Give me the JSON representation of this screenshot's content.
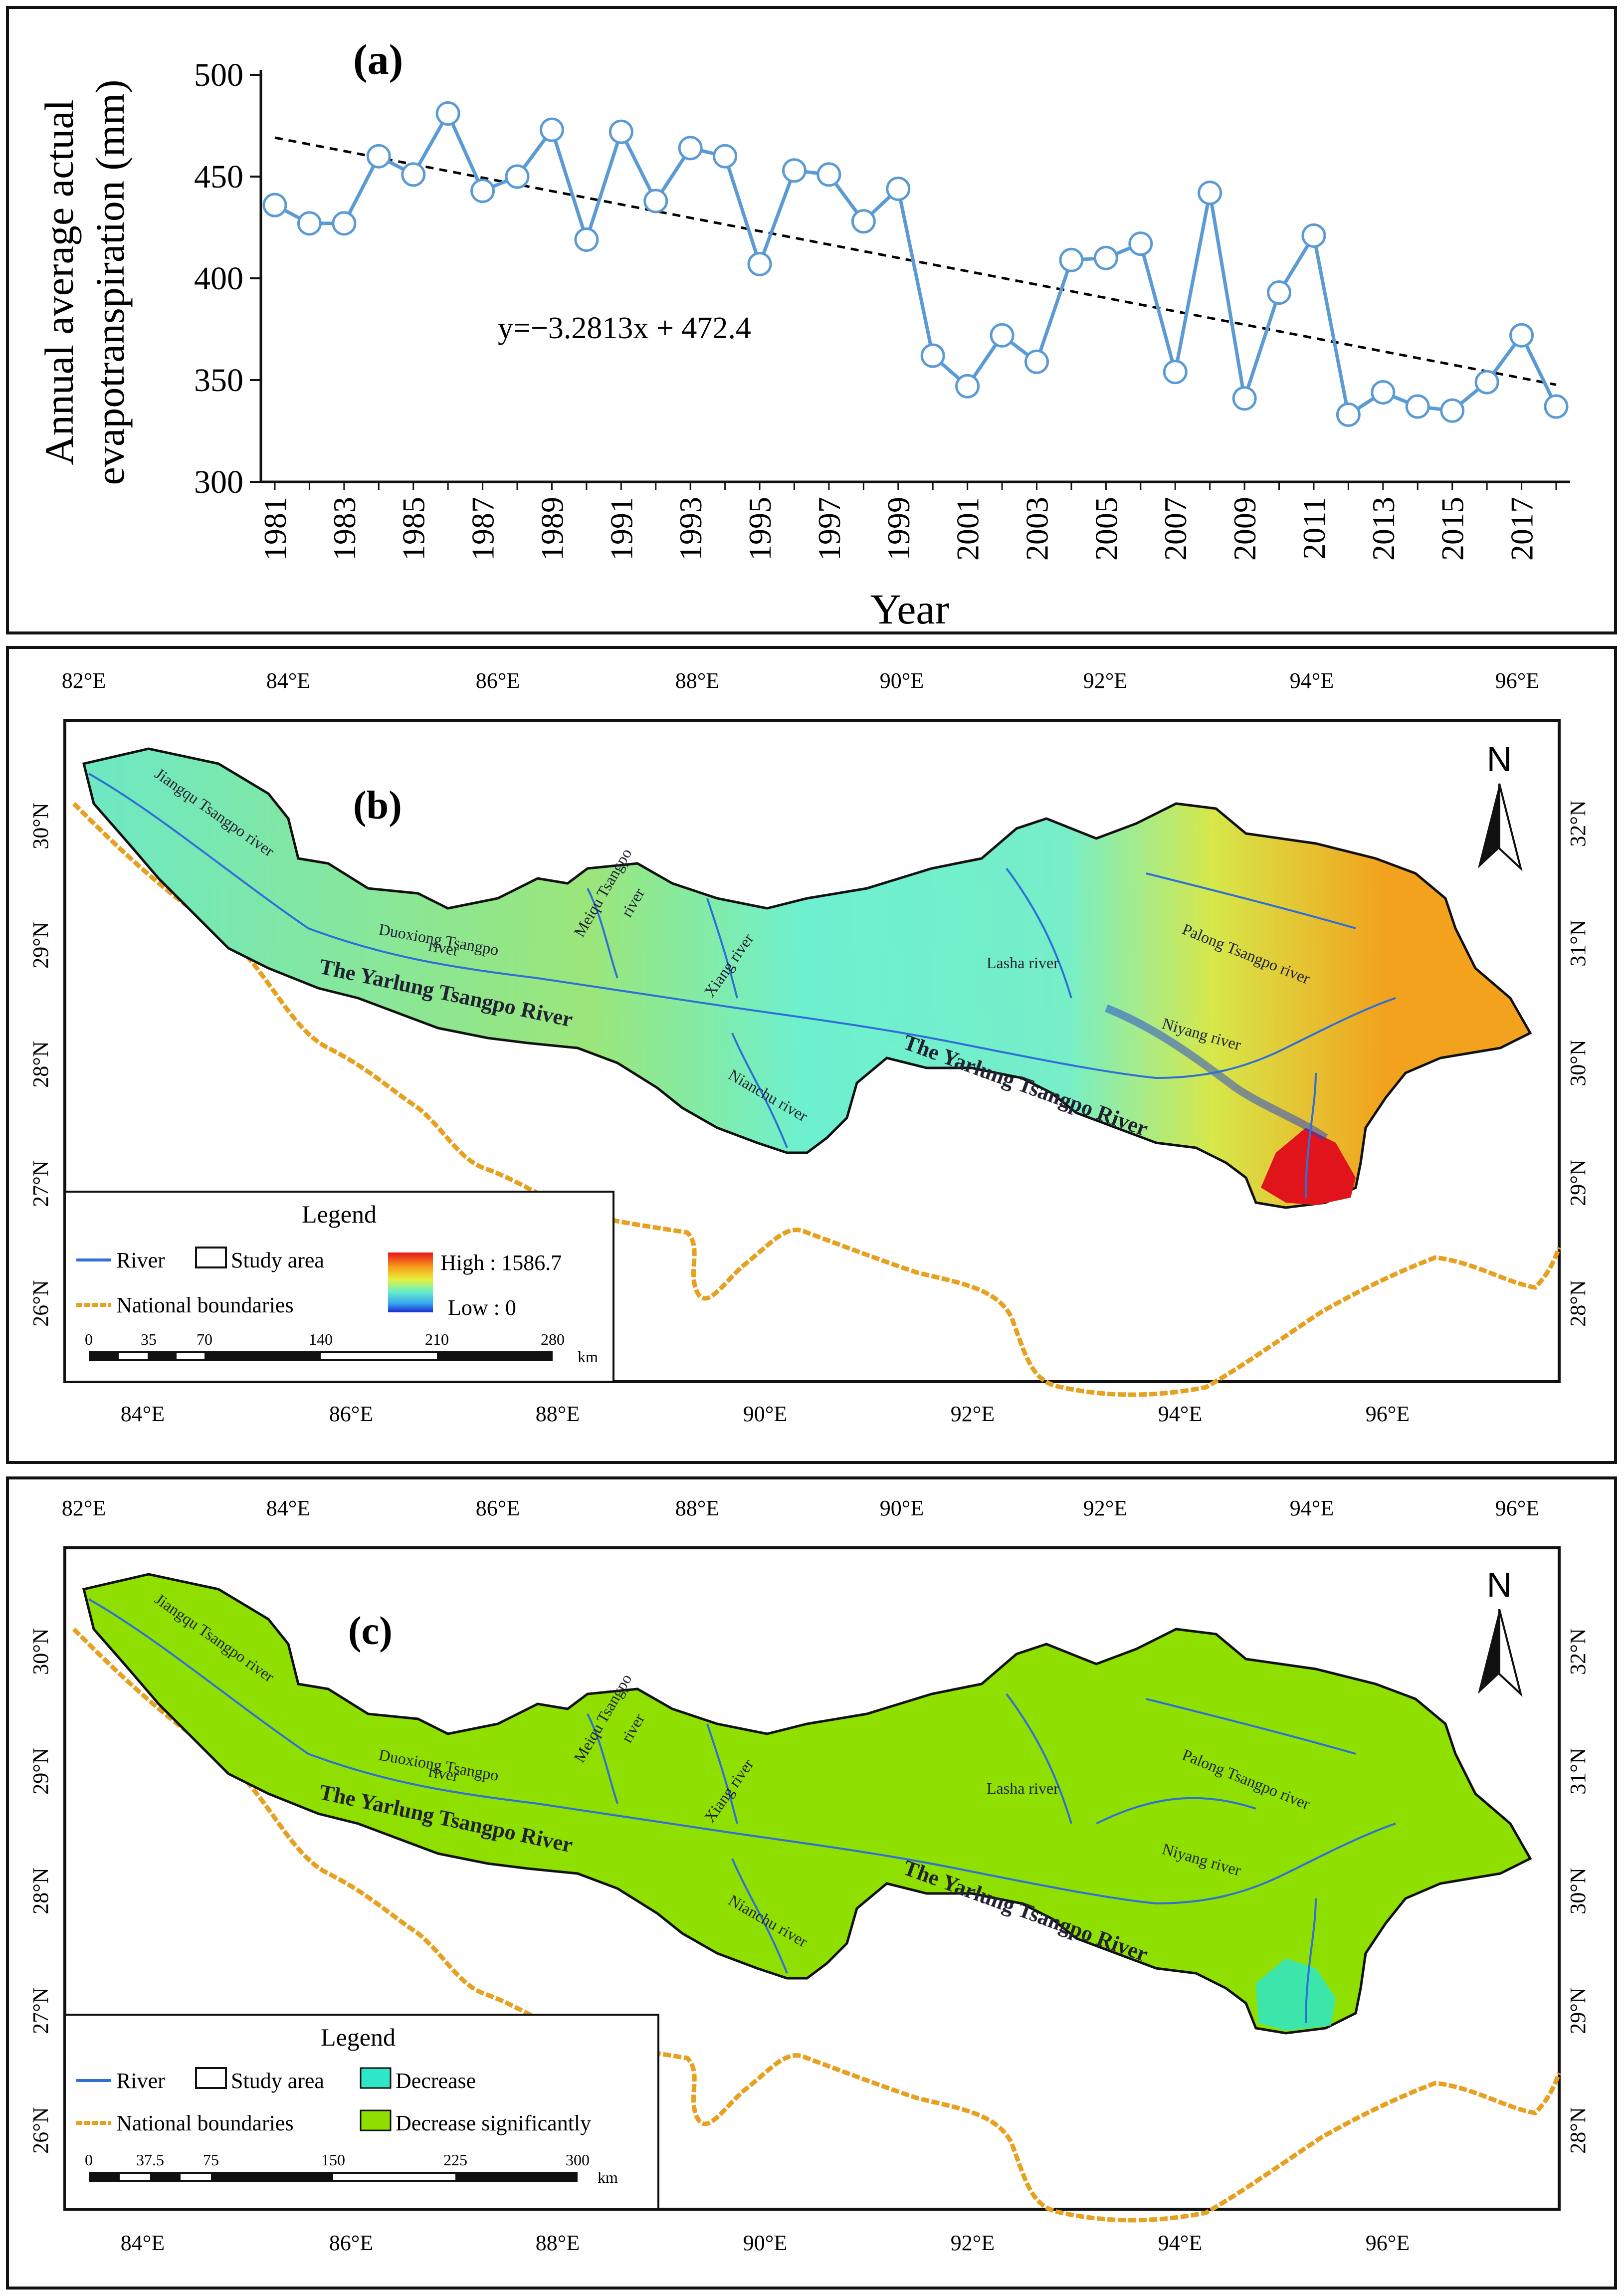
{
  "chart_data": {
    "type": "line",
    "panel_label": "(a)",
    "xlabel": "Year",
    "ylabel_line1": "Annual average actual",
    "ylabel_line2": "evapotranspiration (mm)",
    "ylim": [
      300,
      500
    ],
    "yticks": [
      300,
      350,
      400,
      450,
      500
    ],
    "x_tick_labels": [
      "1981",
      "1983",
      "1985",
      "1987",
      "1989",
      "1991",
      "1993",
      "1995",
      "1997",
      "1999",
      "2001",
      "2003",
      "2005",
      "2007",
      "2009",
      "2011",
      "2013",
      "2015",
      "2017"
    ],
    "x": [
      1981,
      1982,
      1983,
      1984,
      1985,
      1986,
      1987,
      1988,
      1989,
      1990,
      1991,
      1992,
      1993,
      1994,
      1995,
      1996,
      1997,
      1998,
      1999,
      2000,
      2001,
      2002,
      2003,
      2004,
      2005,
      2006,
      2007,
      2008,
      2009,
      2010,
      2011,
      2012,
      2013,
      2014,
      2015,
      2016,
      2017,
      2018
    ],
    "values": [
      436,
      427,
      427,
      460,
      451,
      481,
      443,
      450,
      473,
      419,
      472,
      438,
      464,
      460,
      407,
      453,
      451,
      428,
      444,
      362,
      347,
      372,
      359,
      409,
      410,
      417,
      354,
      442,
      341,
      393,
      421,
      333,
      344,
      337,
      335,
      349,
      372,
      337
    ],
    "trend": {
      "equation": "y=−3.2813x + 472.4",
      "slope": -3.2813,
      "intercept": 472.4
    },
    "series_color": "#5b9bd5",
    "trend_color": "#000000"
  },
  "map_b": {
    "panel_label": "(b)",
    "lon_ticks_top": [
      "82°E",
      "84°E",
      "86°E",
      "88°E",
      "90°E",
      "92°E",
      "94°E",
      "96°E"
    ],
    "lon_ticks_bottom": [
      "84°E",
      "86°E",
      "88°E",
      "90°E",
      "92°E",
      "94°E",
      "96°E"
    ],
    "lat_ticks_left": [
      "30°N",
      "29°N",
      "28°N",
      "27°N",
      "26°N"
    ],
    "lat_ticks_right": [
      "32°N",
      "31°N",
      "30°N",
      "29°N",
      "28°N"
    ],
    "rivers": {
      "jiangqu": "Jiangqu Tsangpo river",
      "duoxiong_1": "Duoxiong Tsangpo",
      "duoxiong_2": "river",
      "meiqu_1": "Meiqu Tsangpo",
      "meiqu_2": "river",
      "xiang": "Xiang river",
      "nianchu": "Nianchu river",
      "lasha": "Lasha river",
      "palong": "Palong Tsangpo river",
      "niyang": "Niyang river",
      "main_west": "The Yarlung Tsangpo River",
      "main_east": "The Yarlung Tsangpo River"
    },
    "north": "N",
    "legend": {
      "title": "Legend",
      "river": "River",
      "study_area": "Study area",
      "national": "National boundaries",
      "high": "High : 1586.7",
      "low": "Low : 0",
      "scale_ticks": [
        "0",
        "35",
        "70",
        "140",
        "210",
        "280"
      ],
      "unit": "km"
    }
  },
  "map_c": {
    "panel_label": "(c)",
    "lon_ticks_top": [
      "82°E",
      "84°E",
      "86°E",
      "88°E",
      "90°E",
      "92°E",
      "94°E",
      "96°E"
    ],
    "lon_ticks_bottom": [
      "84°E",
      "86°E",
      "88°E",
      "90°E",
      "92°E",
      "94°E",
      "96°E"
    ],
    "lat_ticks_left": [
      "30°N",
      "29°N",
      "28°N",
      "27°N",
      "26°N"
    ],
    "lat_ticks_right": [
      "32°N",
      "31°N",
      "30°N",
      "29°N",
      "28°N"
    ],
    "rivers": {
      "jiangqu": "Jiangqu Tsangpo river",
      "duoxiong_1": "Duoxiong Tsangpo",
      "duoxiong_2": "river",
      "meiqu_1": "Meiqu Tsangpo",
      "meiqu_2": "river",
      "xiang": "Xiang river",
      "nianchu": "Nianchu river",
      "lasha": "Lasha river",
      "palong": "Palong Tsangpo river",
      "niyang": "Niyang river",
      "main_west": "The Yarlung Tsangpo River",
      "main_east": "The Yarlung Tsangpo River"
    },
    "north": "N",
    "legend": {
      "title": "Legend",
      "river": "River",
      "study_area": "Study area",
      "decrease": "Decrease",
      "national": "National boundaries",
      "decrease_sig": "Decrease significantly",
      "scale_ticks": [
        "0",
        "37.5",
        "75",
        "150",
        "225",
        "300"
      ],
      "unit": "km"
    },
    "colors": {
      "decrease": "#2ee6c8",
      "decrease_significantly": "#8fe000"
    }
  },
  "colors": {
    "river": "#2f6fd6",
    "boundary": "#e8a020",
    "outline": "#111111"
  }
}
